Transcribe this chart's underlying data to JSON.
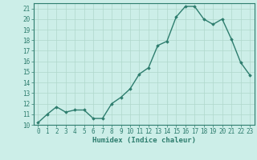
{
  "x": [
    0,
    1,
    2,
    3,
    4,
    5,
    6,
    7,
    8,
    9,
    10,
    11,
    12,
    13,
    14,
    15,
    16,
    17,
    18,
    19,
    20,
    21,
    22,
    23
  ],
  "y": [
    10.2,
    11.0,
    11.7,
    11.2,
    11.4,
    11.4,
    10.6,
    10.6,
    12.0,
    12.6,
    13.4,
    14.8,
    15.4,
    17.5,
    17.9,
    20.2,
    21.2,
    21.2,
    20.0,
    19.5,
    20.0,
    18.1,
    15.9,
    14.7
  ],
  "xlabel": "Humidex (Indice chaleur)",
  "xlim": [
    -0.5,
    23.5
  ],
  "ylim": [
    10,
    21.5
  ],
  "yticks": [
    10,
    11,
    12,
    13,
    14,
    15,
    16,
    17,
    18,
    19,
    20,
    21
  ],
  "xticks": [
    0,
    1,
    2,
    3,
    4,
    5,
    6,
    7,
    8,
    9,
    10,
    11,
    12,
    13,
    14,
    15,
    16,
    17,
    18,
    19,
    20,
    21,
    22,
    23
  ],
  "line_color": "#2e7d6e",
  "marker": "D",
  "marker_size": 1.8,
  "line_width": 1.0,
  "bg_color": "#cceee8",
  "grid_color": "#b0d8cc",
  "tick_fontsize": 5.5,
  "label_fontsize": 6.5
}
